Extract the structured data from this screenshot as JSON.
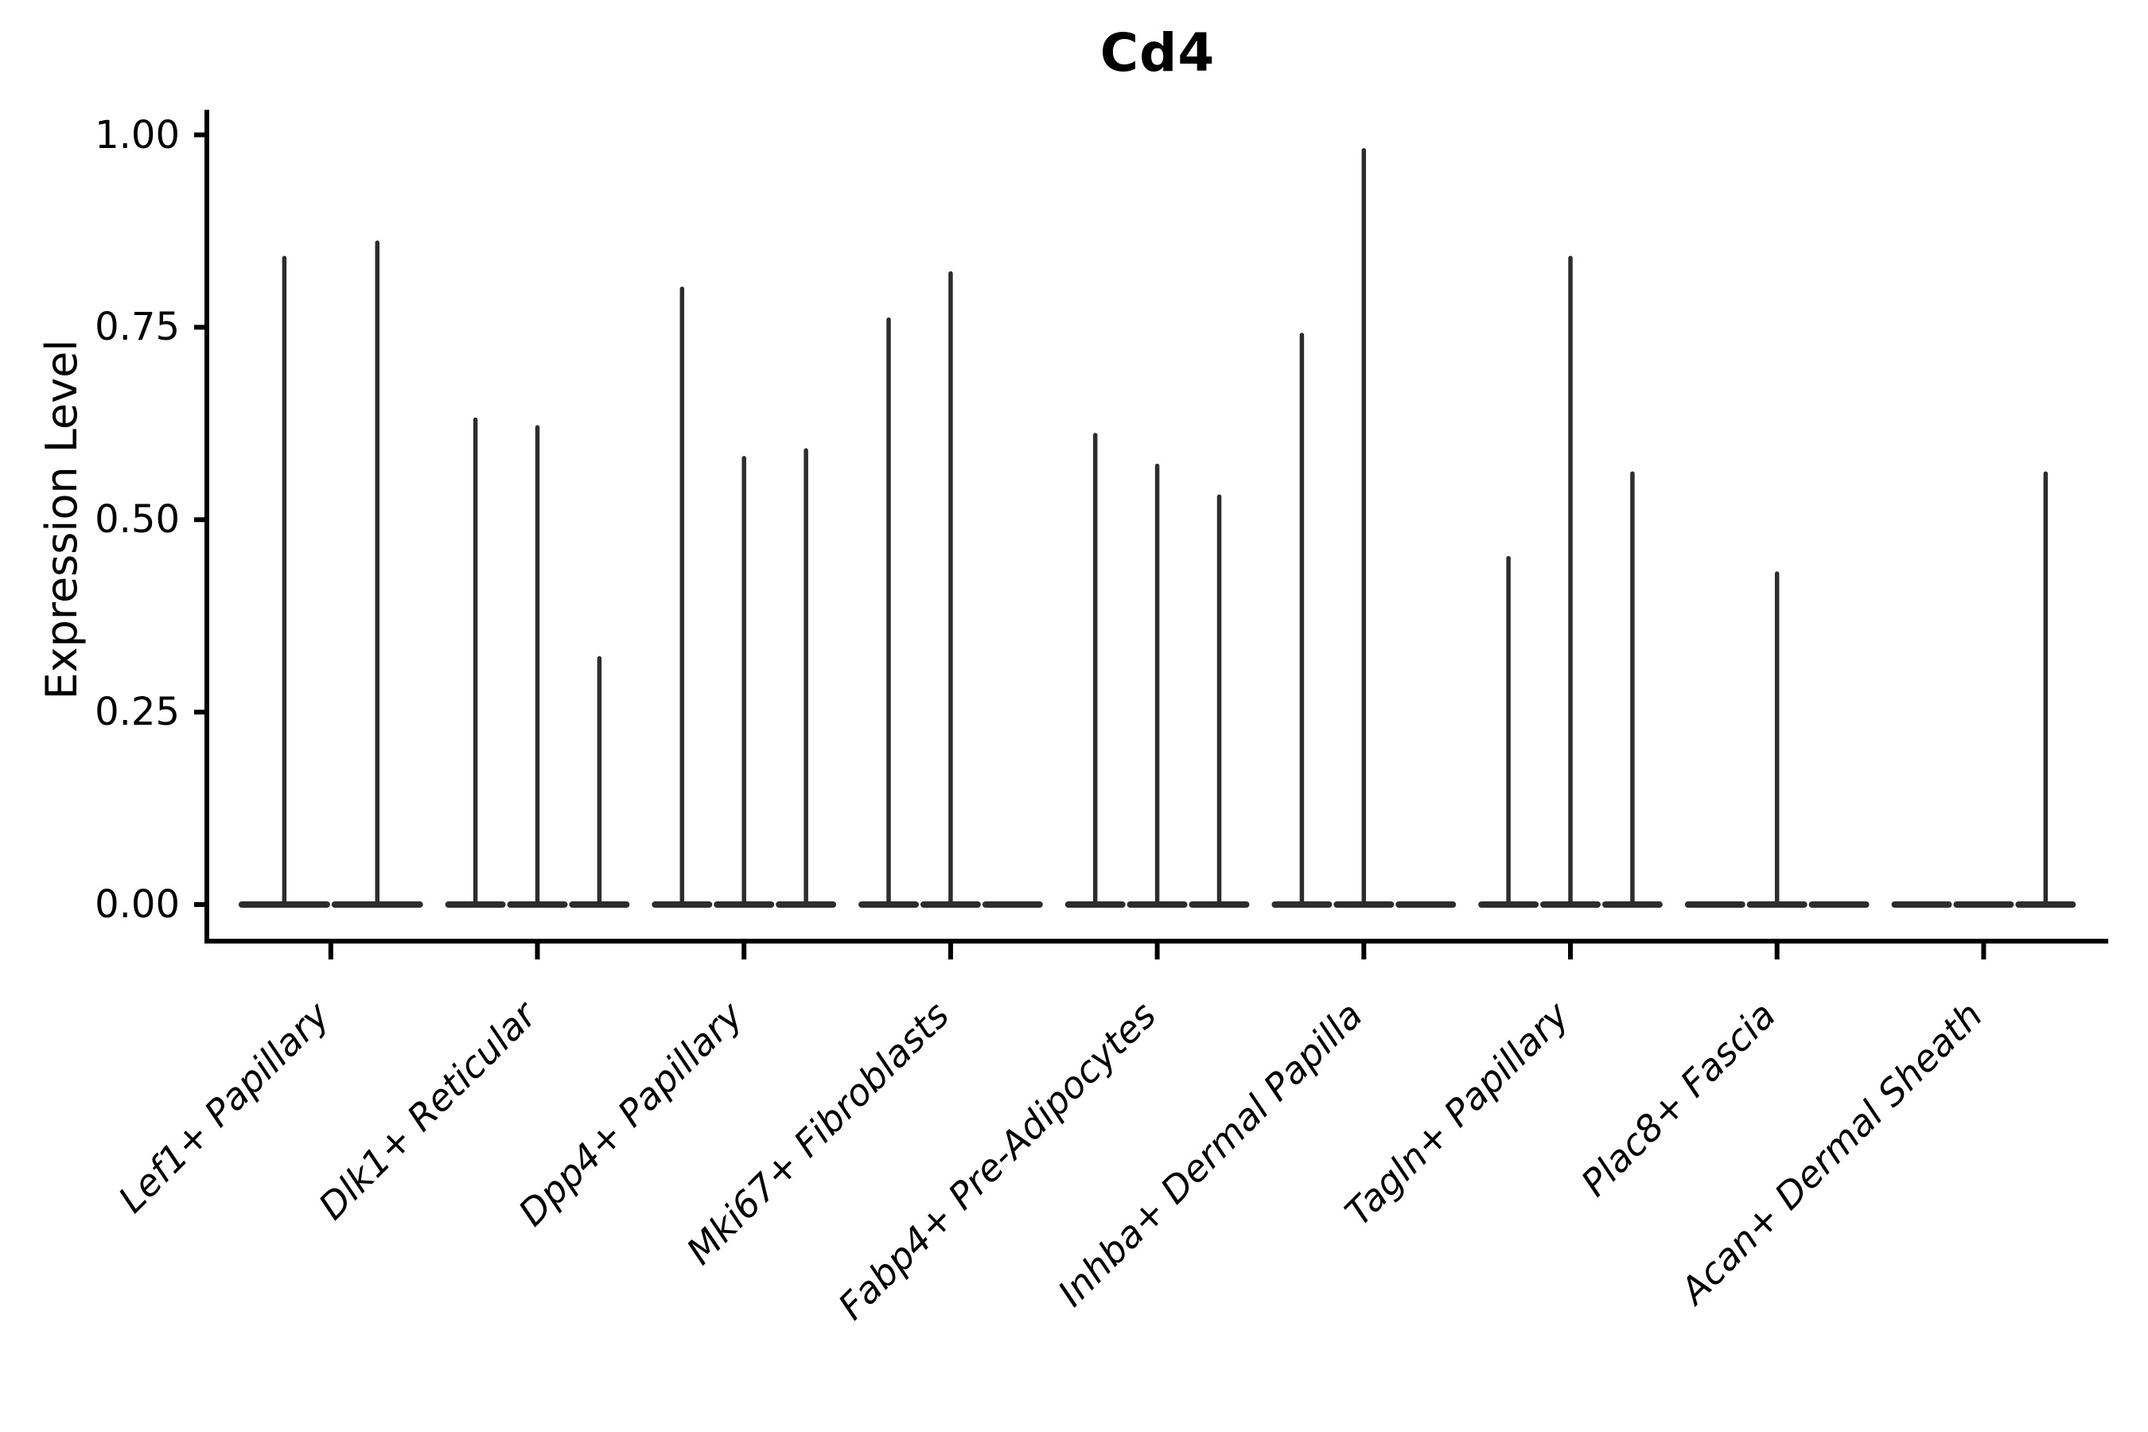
{
  "chart_data": {
    "type": "violin",
    "title": "Cd4",
    "ylabel": "Expression Level",
    "xlabel": "",
    "ylim": [
      0,
      1.0
    ],
    "grid": false,
    "legend": "none",
    "orientation": "vertical",
    "ytick_values": [
      0.0,
      0.25,
      0.5,
      0.75,
      1.0
    ],
    "ytick_labels": [
      "0.00",
      "0.25",
      "0.50",
      "0.75",
      "1.00"
    ],
    "violin_color": "#2d2d2d",
    "axis_color": "#000000",
    "description": "Split violin plot of Cd4 expression; very sparse expression gives needle-like violins. Zero-max violins render as flat baseline segments.",
    "categories": [
      {
        "label": "Lef1+ Papillary",
        "violin_maxes": [
          0.84,
          0.86
        ]
      },
      {
        "label": "Dlk1+ Reticular",
        "violin_maxes": [
          0.63,
          0.62,
          0.32
        ]
      },
      {
        "label": "Dpp4+ Papillary",
        "violin_maxes": [
          0.8,
          0.58,
          0.59
        ]
      },
      {
        "label": "Mki67+ Fibroblasts",
        "violin_maxes": [
          0.76,
          0.82,
          0
        ]
      },
      {
        "label": "Fabp4+ Pre-Adipocytes",
        "violin_maxes": [
          0.61,
          0.57,
          0.53
        ]
      },
      {
        "label": "Inhba+ Dermal Papilla",
        "violin_maxes": [
          0.74,
          0.98,
          0
        ]
      },
      {
        "label": "Tagln+ Papillary",
        "violin_maxes": [
          0.45,
          0.84,
          0.56
        ]
      },
      {
        "label": "Plac8+ Fascia",
        "violin_maxes": [
          0,
          0.43,
          0
        ]
      },
      {
        "label": "Acan+ Dermal Sheath",
        "violin_maxes": [
          0,
          0,
          0.56
        ]
      }
    ]
  }
}
